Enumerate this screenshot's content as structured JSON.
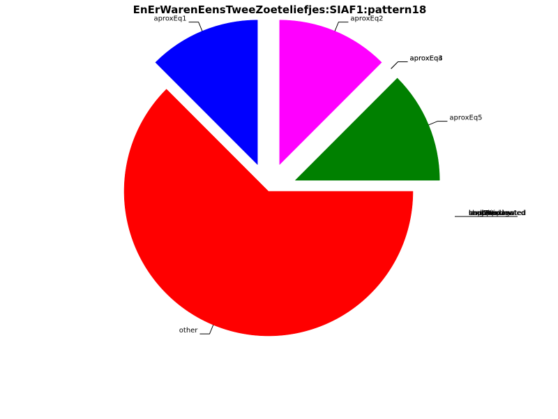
{
  "chart_data": {
    "type": "pie",
    "title": "EnErWarenEensTweeZoeteliefjes:SIAF1:pattern18",
    "slices": [
      {
        "label": "other",
        "value": 62.5,
        "color": "#ff0000",
        "exploded": false
      },
      {
        "label": "aproxEq1",
        "value": 12.5,
        "color": "#0000ff",
        "exploded": true
      },
      {
        "label": "aproxEq2",
        "value": 12.5,
        "color": "#ff00ff",
        "exploded": true
      },
      {
        "label": "aproxEq3",
        "value": 0,
        "color": "#000000",
        "exploded": true
      },
      {
        "label": "aproxEq4",
        "value": 0,
        "color": "#000000",
        "exploded": true
      },
      {
        "label": "aproxEq5",
        "value": 12.5,
        "color": "#008000",
        "exploded": true
      }
    ],
    "overlapping_zero_labels": [
      "unapproximated",
      "longWindow",
      "shortWindow",
      "badGap",
      "backPropagated",
      "unpicked"
    ]
  }
}
